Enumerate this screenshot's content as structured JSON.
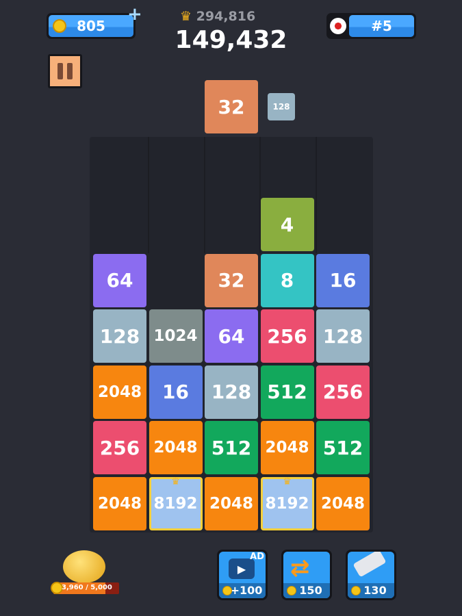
{
  "header": {
    "coins": "805",
    "best_score": "294,816",
    "score": "149,432",
    "rank": "#5"
  },
  "next": {
    "current": "32",
    "upcoming": "128"
  },
  "board": {
    "rows": [
      [
        "",
        "",
        "",
        "4",
        ""
      ],
      [
        "64",
        "",
        "32",
        "8",
        "16"
      ],
      [
        "128",
        "1024",
        "64",
        "256",
        "128"
      ],
      [
        "2048",
        "16",
        "128",
        "512",
        "256"
      ],
      [
        "256",
        "2048",
        "512",
        "2048",
        "512"
      ],
      [
        "2048",
        "8192",
        "2048",
        "8192",
        "2048"
      ]
    ]
  },
  "tile_colors": {
    "4": "#8aae3f",
    "8": "#34c4c4",
    "16": "#5a7be0",
    "32": "#e0875a",
    "64": "#8b6cf0",
    "128": "#98b4c4",
    "256": "#ec4e6f",
    "512": "#12a85c",
    "1024": "#7e8c8b",
    "2048": "#f7860f",
    "8192": "#9fc3ef"
  },
  "piggy_bank": {
    "progress": "3,960 / 5,000",
    "fraction": 0.792
  },
  "powerups": [
    {
      "name": "ad",
      "badge": "AD",
      "price": "+100"
    },
    {
      "name": "swap",
      "price": "150"
    },
    {
      "name": "hammer",
      "price": "130"
    }
  ]
}
